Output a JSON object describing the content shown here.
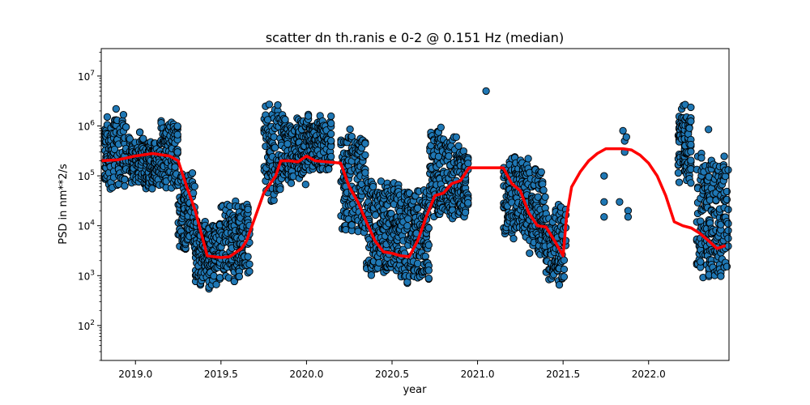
{
  "chart_data": {
    "type": "scatter",
    "title": "scatter dn th.ranis e 0-2 @ 0.151 Hz (median)",
    "xlabel": "year",
    "ylabel": "PSD in nm**2/s",
    "xlim": [
      2018.8,
      2022.47
    ],
    "ylim_log10": [
      1.3,
      7.55
    ],
    "y_scale": "log",
    "x_ticks": [
      "2019.0",
      "2019.5",
      "2020.0",
      "2020.5",
      "2021.0",
      "2021.5",
      "2022.0"
    ],
    "x_tick_values": [
      2019.0,
      2019.5,
      2020.0,
      2020.5,
      2021.0,
      2021.5,
      2022.0
    ],
    "y_ticks": [
      {
        "base": "10",
        "exp": "2",
        "value": 100
      },
      {
        "base": "10",
        "exp": "3",
        "value": 1000
      },
      {
        "base": "10",
        "exp": "4",
        "value": 10000
      },
      {
        "base": "10",
        "exp": "5",
        "value": 100000
      },
      {
        "base": "10",
        "exp": "6",
        "value": 1000000
      },
      {
        "base": "10",
        "exp": "7",
        "value": 10000000
      }
    ],
    "scatter_color": "#1f77b4",
    "median_color": "#ff0000",
    "scatter_clusters": [
      {
        "x": [
          2018.82,
          2018.95
        ],
        "log_range": [
          4.6,
          6.35
        ]
      },
      {
        "x": [
          2018.96,
          2019.15
        ],
        "log_range": [
          4.7,
          5.9
        ]
      },
      {
        "x": [
          2019.15,
          2019.25
        ],
        "log_range": [
          4.6,
          6.3
        ]
      },
      {
        "x": [
          2019.25,
          2019.35
        ],
        "log_range": [
          3.5,
          5.2
        ]
      },
      {
        "x": [
          2019.35,
          2019.5
        ],
        "log_range": [
          2.7,
          4.2
        ]
      },
      {
        "x": [
          2019.5,
          2019.67
        ],
        "log_range": [
          2.85,
          4.6
        ]
      },
      {
        "x": [
          2019.75,
          2019.85
        ],
        "log_range": [
          4.4,
          6.5
        ]
      },
      {
        "x": [
          2019.85,
          2020.0
        ],
        "log_range": [
          4.8,
          6.3
        ]
      },
      {
        "x": [
          2020.0,
          2020.15
        ],
        "log_range": [
          5.0,
          6.4
        ]
      },
      {
        "x": [
          2020.2,
          2020.35
        ],
        "log_range": [
          3.8,
          6.0
        ]
      },
      {
        "x": [
          2020.35,
          2020.55
        ],
        "log_range": [
          2.9,
          5.0
        ]
      },
      {
        "x": [
          2020.55,
          2020.72
        ],
        "log_range": [
          2.8,
          4.8
        ]
      },
      {
        "x": [
          2020.72,
          2020.88
        ],
        "log_range": [
          4.0,
          6.0
        ]
      },
      {
        "x": [
          2020.88,
          2020.95
        ],
        "log_range": [
          4.0,
          5.7
        ]
      },
      {
        "x": [
          2021.15,
          2021.3
        ],
        "log_range": [
          3.7,
          5.5
        ]
      },
      {
        "x": [
          2021.3,
          2021.4
        ],
        "log_range": [
          3.3,
          5.2
        ]
      },
      {
        "x": [
          2021.4,
          2021.52
        ],
        "log_range": [
          2.8,
          4.5
        ]
      },
      {
        "x": [
          2022.17,
          2022.25
        ],
        "log_range": [
          4.8,
          6.5
        ]
      },
      {
        "x": [
          2022.28,
          2022.47
        ],
        "log_range": [
          2.9,
          5.5
        ]
      }
    ],
    "scatter_extra_points": [
      {
        "x": 2021.74,
        "y": 100000
      },
      {
        "x": 2021.74,
        "y": 30000
      },
      {
        "x": 2021.74,
        "y": 15000
      },
      {
        "x": 2021.85,
        "y": 800000
      },
      {
        "x": 2021.86,
        "y": 500000
      },
      {
        "x": 2021.86,
        "y": 300000
      },
      {
        "x": 2021.87,
        "y": 600000
      },
      {
        "x": 2021.88,
        "y": 20000
      },
      {
        "x": 2021.88,
        "y": 15000
      },
      {
        "x": 2021.83,
        "y": 30000
      },
      {
        "x": 2022.35,
        "y": 850000
      },
      {
        "x": 2021.05,
        "y": 5000000
      }
    ],
    "median": {
      "x": [
        2018.8,
        2018.9,
        2019.0,
        2019.1,
        2019.2,
        2019.25,
        2019.3,
        2019.35,
        2019.38,
        2019.42,
        2019.5,
        2019.55,
        2019.62,
        2019.65,
        2019.7,
        2019.75,
        2019.82,
        2019.85,
        2019.9,
        2019.95,
        2020.0,
        2020.05,
        2020.2,
        2020.25,
        2020.3,
        2020.35,
        2020.4,
        2020.45,
        2020.5,
        2020.55,
        2020.6,
        2020.65,
        2020.7,
        2020.75,
        2020.8,
        2020.85,
        2020.9,
        2020.95,
        2021.0,
        2021.15,
        2021.2,
        2021.25,
        2021.3,
        2021.35,
        2021.4,
        2021.45,
        2021.5,
        2021.52,
        2021.55,
        2021.6,
        2021.65,
        2021.7,
        2021.75,
        2021.85,
        2021.9,
        2021.95,
        2022.0,
        2022.05,
        2022.1,
        2022.15,
        2022.2,
        2022.25,
        2022.3,
        2022.35,
        2022.4,
        2022.45
      ],
      "y": [
        200000,
        210000,
        250000,
        280000,
        250000,
        200000,
        60000,
        20000,
        8000,
        2500,
        2300,
        2400,
        3500,
        5000,
        15000,
        45000,
        100000,
        200000,
        200000,
        190000,
        250000,
        200000,
        180000,
        60000,
        30000,
        12000,
        5000,
        3000,
        2800,
        2500,
        2400,
        5000,
        15000,
        40000,
        45000,
        70000,
        80000,
        145000,
        145000,
        145000,
        70000,
        50000,
        18000,
        10000,
        9500,
        5000,
        2500,
        15000,
        60000,
        120000,
        200000,
        280000,
        350000,
        350000,
        330000,
        260000,
        180000,
        100000,
        40000,
        12000,
        10000,
        9000,
        7000,
        5000,
        3500,
        4000
      ]
    }
  }
}
